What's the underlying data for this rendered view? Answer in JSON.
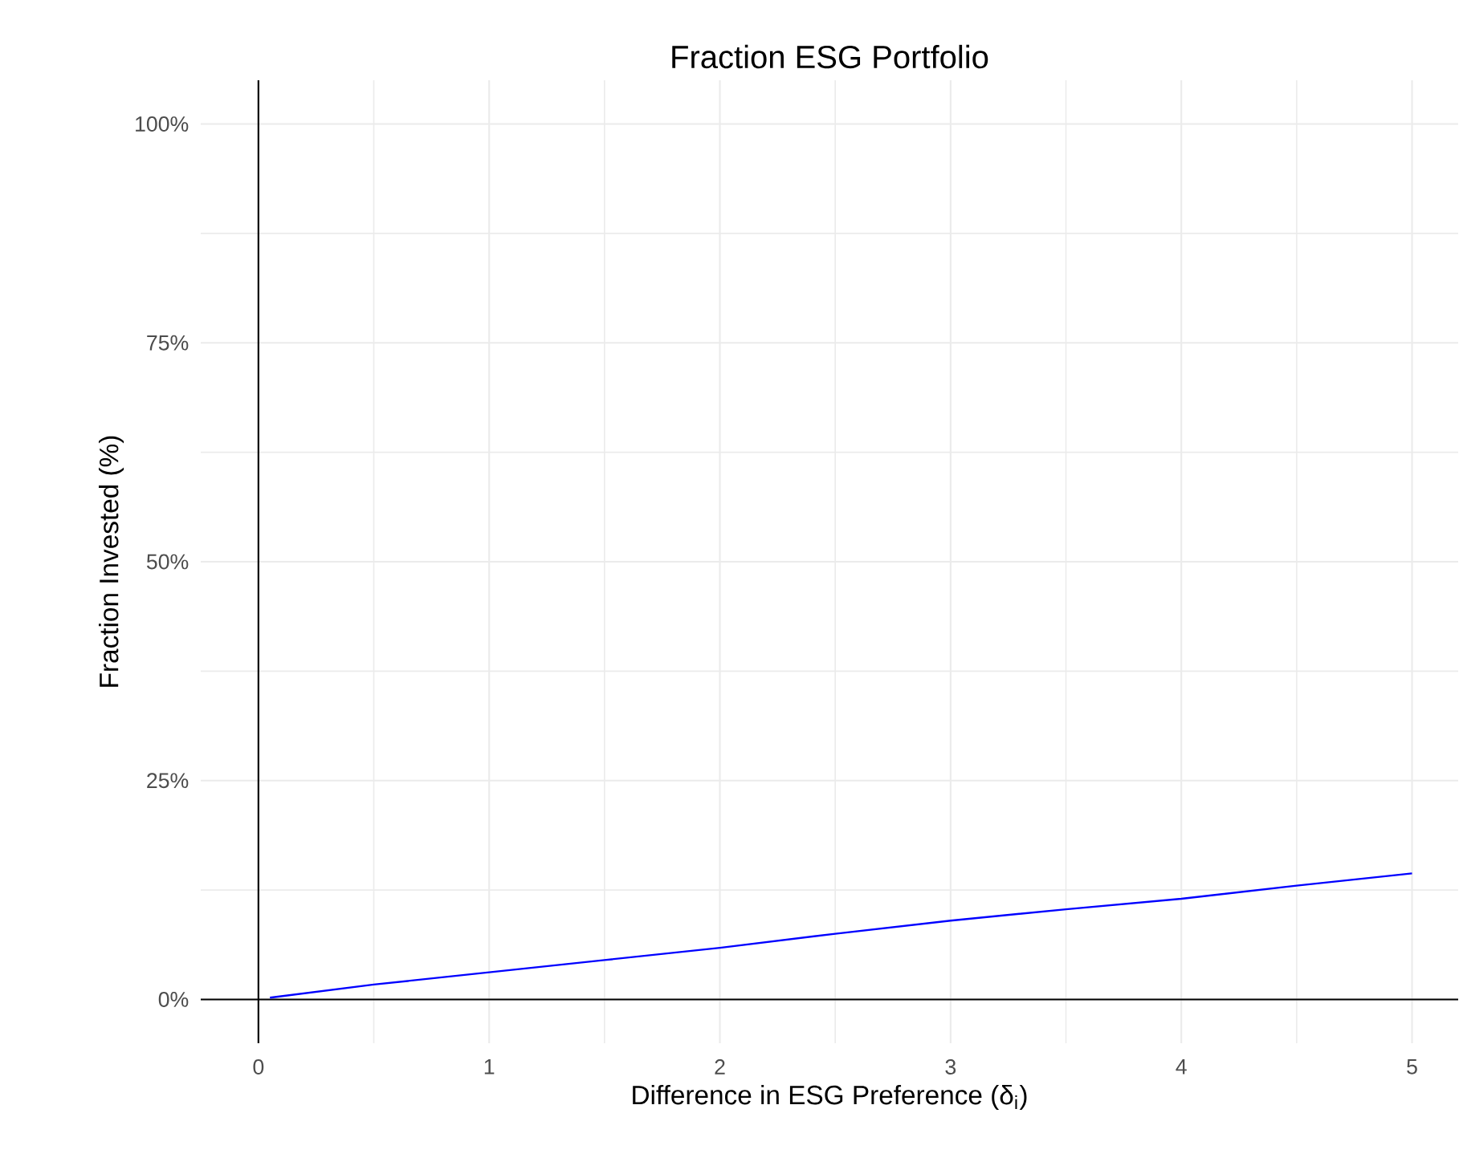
{
  "chart_data": {
    "type": "line",
    "title": "Fraction ESG Portfolio",
    "xlabel": "Difference in ESG Preference (δ$_{i}$)",
    "ylabel": "Fraction Invested (%)",
    "x": [
      0.05,
      0.5,
      1,
      1.5,
      2,
      2.5,
      3,
      3.5,
      4,
      4.5,
      5
    ],
    "series": [
      {
        "color": "#0000ff",
        "values": [
          0.2,
          1.7,
          3.1,
          4.5,
          5.9,
          7.5,
          9.0,
          10.3,
          11.5,
          13.0,
          14.4
        ]
      }
    ],
    "xlim": [
      -0.25,
      5.2
    ],
    "ylim": [
      -5,
      105
    ],
    "xticks": [
      0,
      1,
      2,
      3,
      4,
      5
    ],
    "yticks": [
      {
        "value": 0,
        "label": "0%"
      },
      {
        "value": 25,
        "label": "25%"
      },
      {
        "value": 50,
        "label": "50%"
      },
      {
        "value": 75,
        "label": "75%"
      },
      {
        "value": 100,
        "label": "100%"
      }
    ],
    "grid": true,
    "marker": "none",
    "line_style": "solid"
  }
}
